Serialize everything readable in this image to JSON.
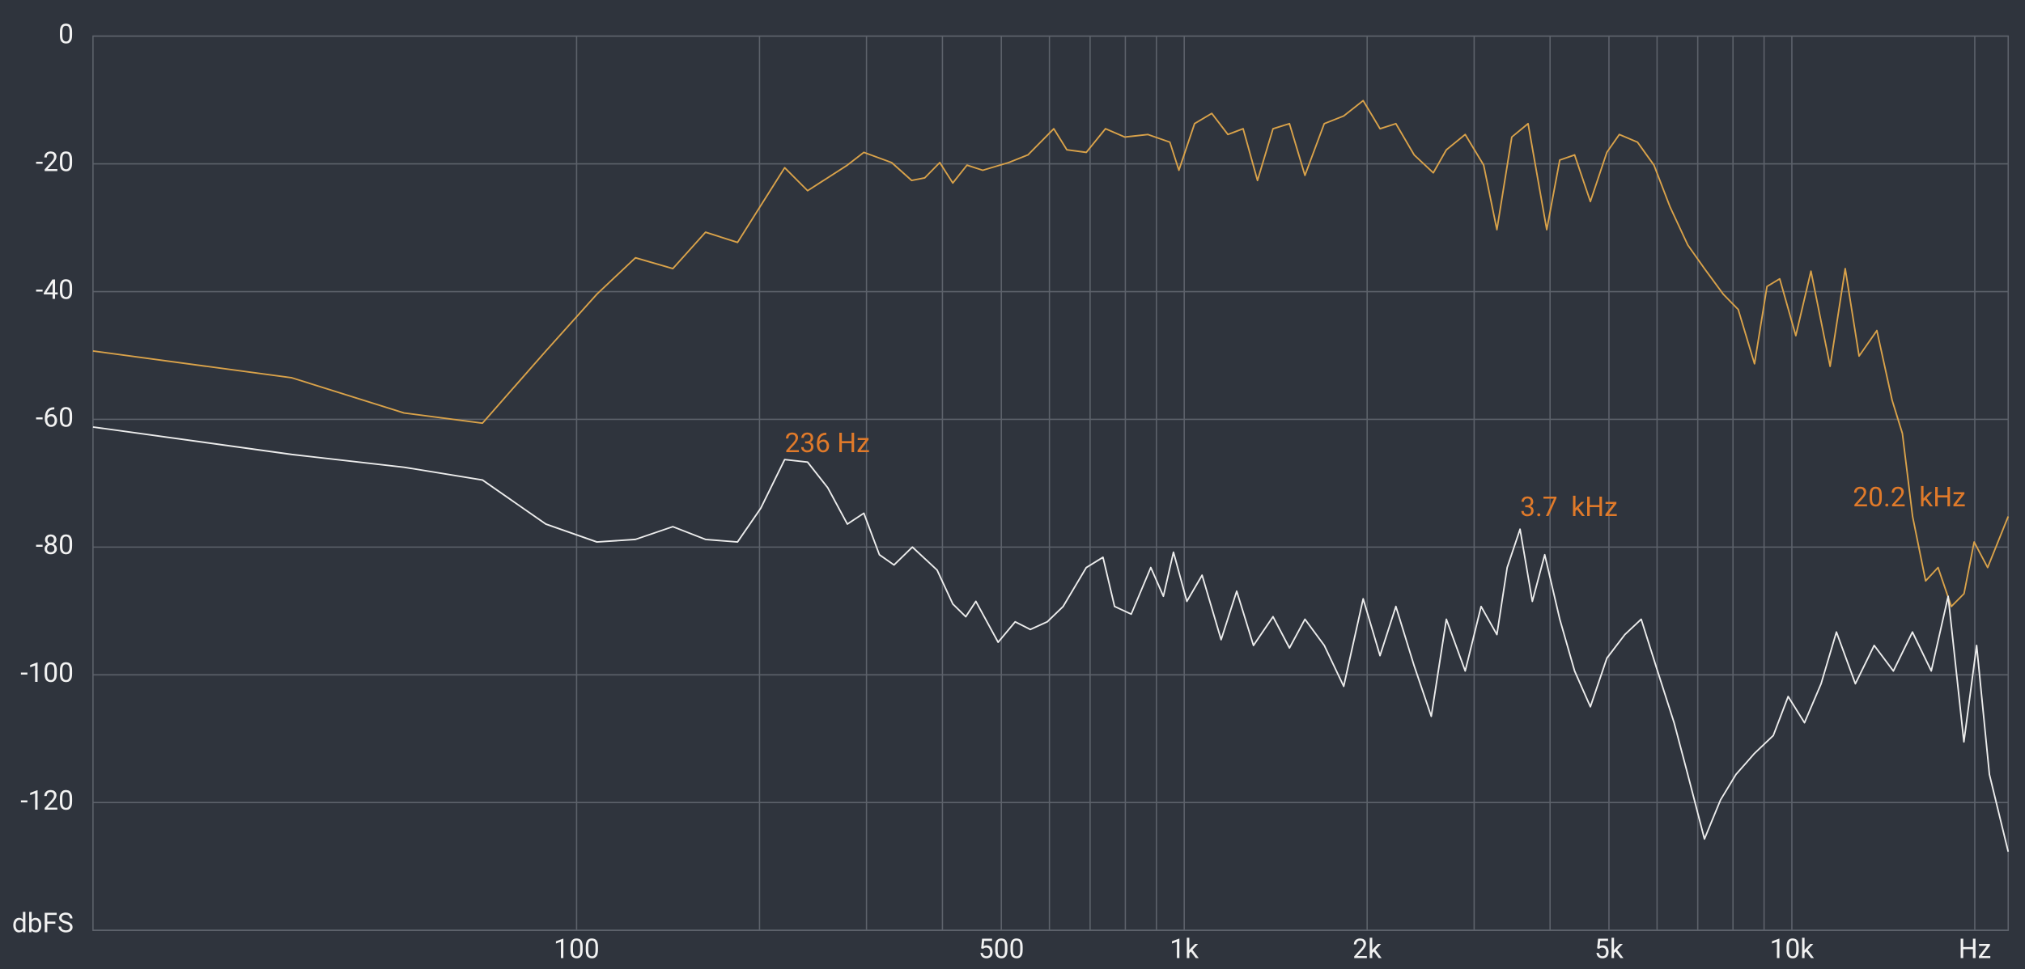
{
  "chart_data": {
    "type": "line",
    "log_x": true,
    "grid": true,
    "xlim": [
      16,
      22700
    ],
    "ylim": [
      -140,
      0
    ],
    "xticks": [
      100,
      500,
      {
        "value": 1000,
        "label": "1k"
      },
      {
        "value": 2000,
        "label": "2k"
      },
      {
        "value": 5000,
        "label": "5k"
      },
      {
        "value": 10000,
        "label": "10k"
      },
      {
        "value": 20000,
        "label": "Hz"
      }
    ],
    "x_minor_ticks": [
      200,
      300,
      400,
      600,
      700,
      800,
      900,
      3000,
      4000,
      6000,
      7000,
      8000,
      9000
    ],
    "yticks": [
      0,
      -20,
      -40,
      -60,
      -80,
      -100,
      -120,
      {
        "value": -140,
        "label": "dbFS"
      }
    ],
    "annotations": [
      {
        "text": "236 Hz",
        "x": 220,
        "y": -64,
        "color": "#e07a2a"
      },
      {
        "text": "3.7  kHz",
        "x": 3570,
        "y": -74,
        "color": "#e07a2a"
      },
      {
        "text": "20.2  kHz",
        "x": 12600,
        "y": -72.5,
        "color": "#e07a2a"
      }
    ],
    "series": [
      {
        "color": "#d9a24a",
        "x": [
          16,
          34,
          52,
          70,
          89,
          108,
          125,
          144,
          163,
          184,
          220,
          240,
          279,
          297,
          330,
          356,
          374,
          396,
          416,
          439,
          466,
          514,
          553,
          610,
          641,
          690,
          742,
          798,
          871,
          947,
          980,
          1040,
          1110,
          1180,
          1250,
          1320,
          1400,
          1490,
          1580,
          1700,
          1830,
          1970,
          2100,
          2230,
          2390,
          2570,
          2700,
          2900,
          3110,
          3270,
          3460,
          3680,
          3950,
          4150,
          4390,
          4660,
          4960,
          5200,
          5570,
          5930,
          6300,
          6740,
          7180,
          7710,
          8160,
          8680,
          9100,
          9550,
          10150,
          10750,
          11560,
          12240,
          12900,
          13800,
          14620,
          15200,
          15800,
          16600,
          17400,
          18300,
          19200,
          19950,
          21000,
          22700
        ],
        "values": [
          -49.3,
          -53.5,
          -59,
          -60.6,
          -49.3,
          -40.4,
          -34.7,
          -36.4,
          -30.7,
          -32.3,
          -20.6,
          -24.2,
          -20.2,
          -18.2,
          -19.8,
          -22.6,
          -22.2,
          -19.8,
          -23,
          -20.2,
          -21,
          -19.8,
          -18.6,
          -14.5,
          -17.8,
          -18.2,
          -14.5,
          -15.8,
          -15.4,
          -16.6,
          -21,
          -13.7,
          -12.1,
          -15.4,
          -14.5,
          -22.6,
          -14.5,
          -13.7,
          -21.8,
          -13.7,
          -12.5,
          -10.1,
          -14.5,
          -13.7,
          -18.6,
          -21.4,
          -17.8,
          -15.4,
          -20.2,
          -30.3,
          -15.8,
          -13.7,
          -30.3,
          -19.4,
          -18.6,
          -25.9,
          -18.2,
          -15.4,
          -16.6,
          -20.2,
          -26.7,
          -32.7,
          -36.4,
          -40.4,
          -42.8,
          -51.3,
          -39.2,
          -38,
          -46.9,
          -36.8,
          -51.7,
          -36.4,
          -50.1,
          -46.1,
          -57,
          -62.2,
          -75.2,
          -85.3,
          -83.2,
          -89.3,
          -87.3,
          -79.2,
          -83.2,
          -75.2
        ]
      },
      {
        "color": "#ececec",
        "x": [
          16,
          34,
          52,
          70,
          89,
          108,
          125,
          144,
          163,
          184,
          201,
          220,
          240,
          259,
          279,
          297,
          315,
          333,
          357,
          392,
          416,
          437,
          454,
          494,
          527,
          558,
          595,
          632,
          690,
          735,
          768,
          818,
          881,
          924,
          960,
          1010,
          1070,
          1150,
          1220,
          1300,
          1400,
          1490,
          1580,
          1700,
          1830,
          1970,
          2100,
          2230,
          2390,
          2550,
          2700,
          2900,
          3080,
          3270,
          3400,
          3570,
          3740,
          3920,
          4150,
          4390,
          4660,
          4960,
          5310,
          5650,
          6010,
          6400,
          6740,
          7180,
          7630,
          8090,
          8680,
          9320,
          9860,
          10490,
          11170,
          11840,
          12720,
          13660,
          14690,
          15790,
          16960,
          18080,
          19190,
          20140,
          21140,
          22700
        ],
        "values": [
          -61.2,
          -65.5,
          -67.5,
          -69.5,
          -76.4,
          -79.2,
          -78.8,
          -76.8,
          -78.8,
          -79.2,
          -73.9,
          -66.3,
          -66.7,
          -70.7,
          -76.4,
          -74.7,
          -81.2,
          -82.8,
          -80,
          -83.6,
          -88.9,
          -90.9,
          -88.5,
          -94.9,
          -91.7,
          -92.9,
          -91.7,
          -89.3,
          -83.2,
          -81.6,
          -89.3,
          -90.5,
          -83.2,
          -87.7,
          -80.8,
          -88.5,
          -84.4,
          -94.5,
          -86.9,
          -95.4,
          -90.9,
          -95.8,
          -91.3,
          -95.4,
          -101.8,
          -88.1,
          -97,
          -89.3,
          -98.6,
          -106.5,
          -91.3,
          -99.4,
          -89.3,
          -93.7,
          -83.2,
          -77.2,
          -88.5,
          -81.2,
          -91.3,
          -99.4,
          -105,
          -97.4,
          -93.7,
          -91.3,
          -99.4,
          -107.5,
          -115.6,
          -125.7,
          -119.6,
          -115.6,
          -112.3,
          -109.5,
          -103.4,
          -107.5,
          -101.4,
          -93.3,
          -101.4,
          -95.4,
          -99.4,
          -93.3,
          -99.4,
          -87.7,
          -110.5,
          -95.4,
          -115.6,
          -127.7
        ]
      }
    ]
  }
}
